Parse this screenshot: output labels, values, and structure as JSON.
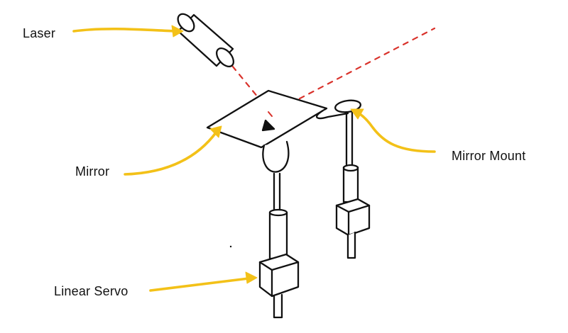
{
  "labels": {
    "laser": "Laser",
    "mirror": "Mirror",
    "mirror_mount": "Mirror Mount",
    "linear_servo": "Linear Servo"
  },
  "colors": {
    "ink": "#111111",
    "arrow": "#f3c118",
    "beam": "#d9322b",
    "background": "#ffffff"
  }
}
